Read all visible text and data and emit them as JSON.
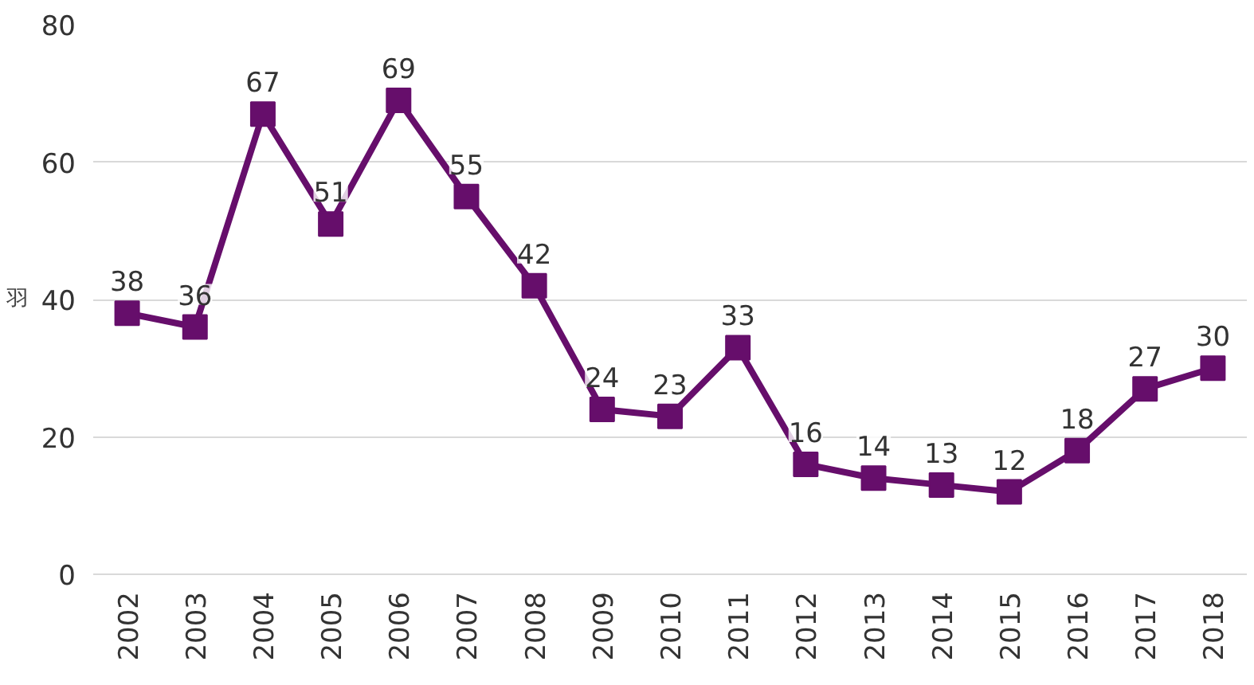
{
  "chart_data": {
    "type": "line",
    "ylabel": "羽",
    "categories": [
      "2002",
      "2003",
      "2004",
      "2005",
      "2006",
      "2007",
      "2008",
      "2009",
      "2010",
      "2011",
      "2012",
      "2013",
      "2014",
      "2015",
      "2016",
      "2017",
      "2018"
    ],
    "series": [
      {
        "color": "#660e6b",
        "values": [
          38,
          36,
          67,
          51,
          69,
          55,
          42,
          24,
          23,
          33,
          16,
          14,
          13,
          12,
          18,
          27,
          30
        ]
      }
    ],
    "ylim": [
      0,
      80
    ],
    "yticks": [
      0,
      20,
      40,
      60,
      80
    ],
    "grid": "y",
    "marker": "square",
    "line_style": "solid",
    "data_labels": true
  }
}
